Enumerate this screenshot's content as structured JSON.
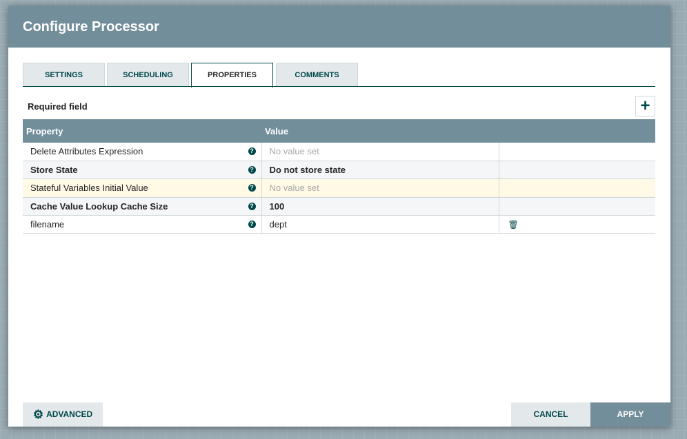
{
  "dialog": {
    "title": "Configure Processor"
  },
  "tabs": [
    {
      "label": "SETTINGS"
    },
    {
      "label": "SCHEDULING"
    },
    {
      "label": "PROPERTIES",
      "active": true
    },
    {
      "label": "COMMENTS"
    }
  ],
  "required_label": "Required field",
  "add_icon": "plus-icon",
  "table": {
    "headers": [
      "Property",
      "Value"
    ],
    "rows": [
      {
        "property": "Delete Attributes Expression",
        "value": "No value set",
        "required": false
      },
      {
        "property": "Store State",
        "value": "Do not store state",
        "required": true
      },
      {
        "property": "Stateful Variables Initial Value",
        "value": "No value set",
        "required": false
      },
      {
        "property": "Cache Value Lookup Cache Size",
        "value": "100",
        "required": true
      },
      {
        "property": "filename",
        "value": "dept",
        "required": false,
        "deletable": true
      }
    ]
  },
  "footer": {
    "advanced": "ADVANCED",
    "cancel": "CANCEL",
    "apply": "APPLY"
  },
  "colors": {
    "header": "#728e9b",
    "accent": "#004849",
    "highlight_row": "#fff9e6"
  }
}
